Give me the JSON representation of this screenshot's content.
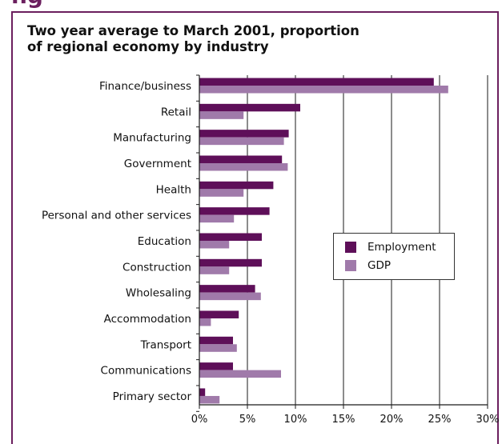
{
  "chart_data": {
    "type": "bar",
    "orientation": "horizontal",
    "title_lines": [
      "Two year average to March 2001, proportion",
      "of regional economy by industry"
    ],
    "categories": [
      "Finance/business",
      "Retail",
      "Manufacturing",
      "Government",
      "Health",
      "Personal and other services",
      "Education",
      "Construction",
      "Wholesaling",
      "Accommodation",
      "Transport",
      "Communications",
      "Primary sector"
    ],
    "series": [
      {
        "name": "Employment",
        "color": "#5e0f59",
        "values": [
          24.4,
          10.5,
          9.3,
          8.6,
          7.7,
          7.3,
          6.5,
          6.5,
          5.8,
          4.1,
          3.5,
          3.5,
          0.6
        ]
      },
      {
        "name": "GDP",
        "color": "#a07aaa",
        "values": [
          25.9,
          4.6,
          8.8,
          9.2,
          4.6,
          3.6,
          3.1,
          3.1,
          6.4,
          1.2,
          3.9,
          8.5,
          2.1
        ]
      }
    ],
    "x_ticks": [
      "0%",
      "5%",
      "10%",
      "15%",
      "20%",
      "25%",
      "30%"
    ],
    "xlim": [
      0,
      30
    ],
    "grid": true,
    "legend_position": "center-right"
  },
  "header_fragment": "ng"
}
